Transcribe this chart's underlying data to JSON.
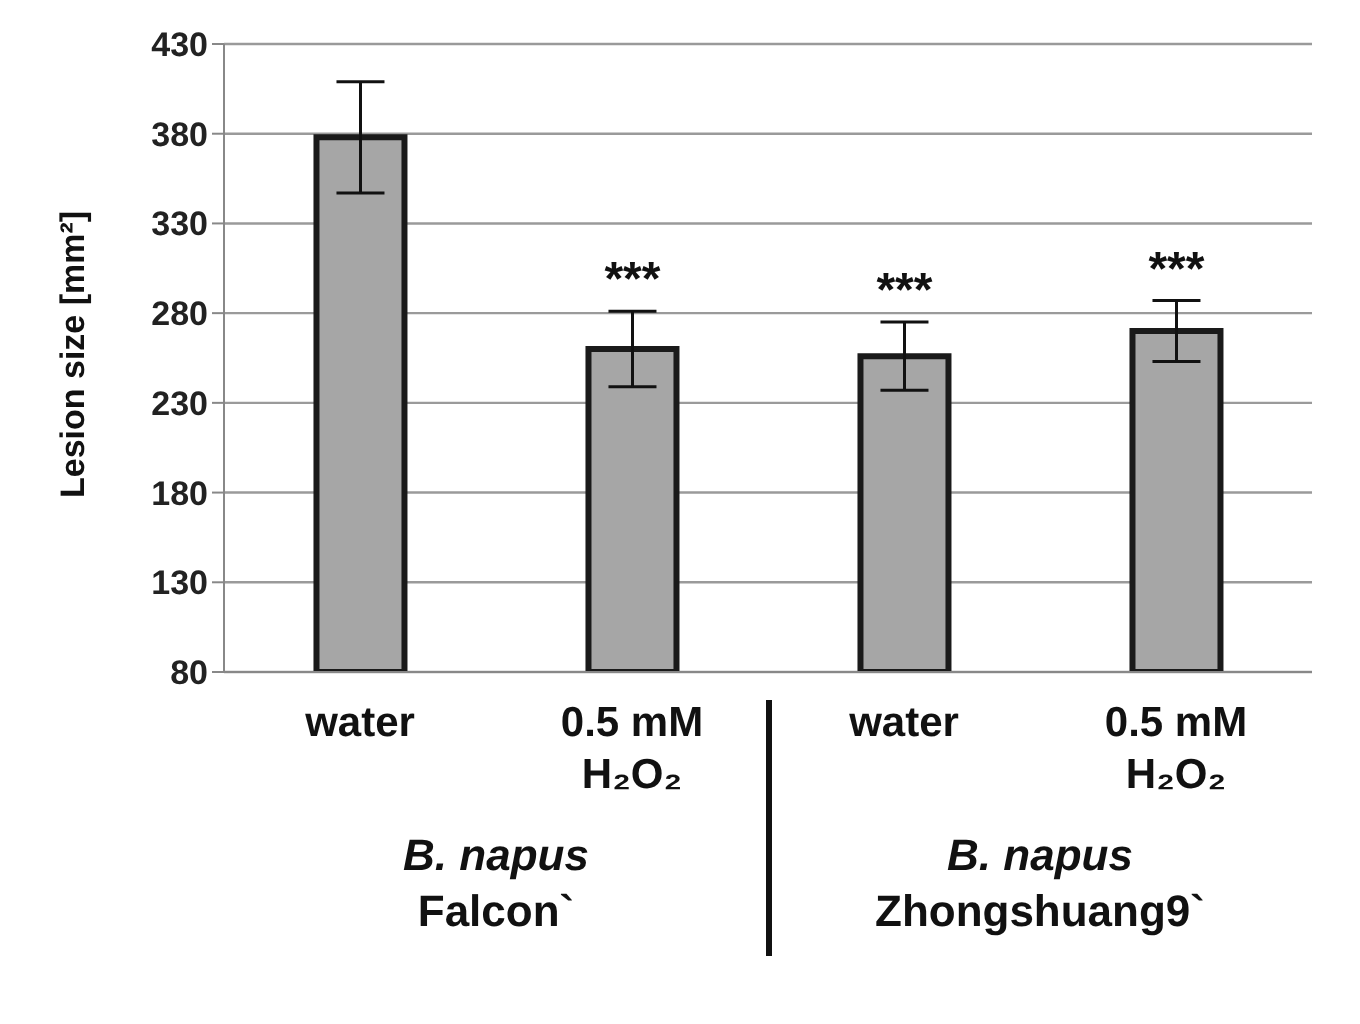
{
  "chart_data": {
    "type": "bar",
    "ylabel": "Lesion size [mm²]",
    "categories": [
      "water",
      "0.5 mM H₂O₂",
      "water",
      "0.5 mM H₂O₂"
    ],
    "values": [
      378,
      260,
      256,
      270
    ],
    "errors": [
      31,
      21,
      19,
      17
    ],
    "value_labels": [
      null,
      "***",
      "***",
      "***"
    ],
    "color": "#a6a6a6",
    "ylim": [
      80,
      430
    ],
    "yticks": [
      80,
      130,
      180,
      230,
      280,
      330,
      380,
      430
    ],
    "grid": "y",
    "annotations": [
      "B. napus",
      "Falcon`",
      "B. napus",
      "Zhongshuang9`"
    ]
  }
}
